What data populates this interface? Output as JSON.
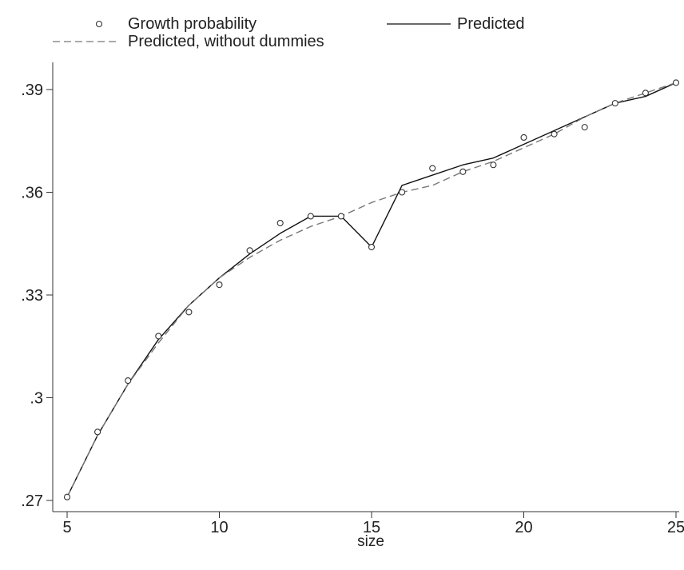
{
  "chart_data": {
    "type": "line",
    "xlabel": "size",
    "ylabel": "",
    "x": [
      5,
      6,
      7,
      8,
      9,
      10,
      11,
      12,
      13,
      14,
      15,
      16,
      17,
      18,
      19,
      20,
      21,
      22,
      23,
      24,
      25
    ],
    "xlim": [
      5,
      25
    ],
    "ylim": [
      0.27,
      0.39
    ],
    "xticks": [
      5,
      10,
      15,
      20,
      25
    ],
    "xtick_labels": [
      "5",
      "10",
      "15",
      "20",
      "25"
    ],
    "yticks": [
      0.27,
      0.3,
      0.33,
      0.36,
      0.39
    ],
    "ytick_labels": [
      ".27",
      ".3",
      ".33",
      ".36",
      ".39"
    ],
    "grid": false,
    "legend_position": "top",
    "series": [
      {
        "name": "Growth probability",
        "style": "markers",
        "values": [
          0.271,
          0.29,
          0.305,
          0.318,
          0.325,
          0.333,
          0.343,
          0.351,
          0.353,
          0.353,
          0.344,
          0.36,
          0.367,
          0.366,
          0.368,
          0.376,
          0.377,
          0.379,
          0.386,
          0.389,
          0.392
        ]
      },
      {
        "name": "Predicted",
        "style": "solid",
        "values": [
          0.271,
          0.289,
          0.304,
          0.317,
          0.327,
          0.335,
          0.342,
          0.348,
          0.353,
          0.353,
          0.344,
          0.362,
          0.365,
          0.368,
          0.37,
          0.374,
          0.378,
          0.382,
          0.386,
          0.388,
          0.392
        ]
      },
      {
        "name": "Predicted, without dummies",
        "style": "dashed",
        "values": [
          0.271,
          0.289,
          0.304,
          0.316,
          0.327,
          0.335,
          0.341,
          0.346,
          0.35,
          0.353,
          0.357,
          0.36,
          0.362,
          0.366,
          0.369,
          0.373,
          0.377,
          0.382,
          0.386,
          0.389,
          0.392
        ]
      }
    ]
  }
}
